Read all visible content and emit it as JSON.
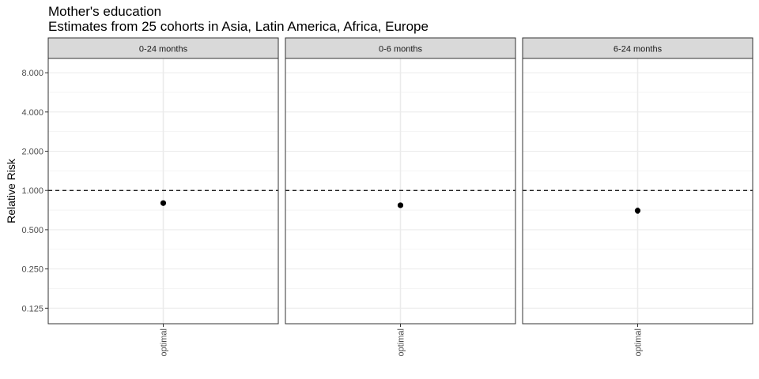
{
  "chart_data": {
    "type": "scatter",
    "title": "Mother's education",
    "subtitle": "Estimates from 25 cohorts in Asia, Latin America, Africa, Europe",
    "ylabel": "Relative Risk",
    "xlabel": "",
    "y_scale": "log2",
    "ylim": [
      0.095,
      10.3
    ],
    "y_ticks": [
      "0.125",
      "0.250",
      "0.500",
      "1.000",
      "2.000",
      "4.000",
      "8.000"
    ],
    "reference_line": 1.0,
    "grid": true,
    "panels": [
      {
        "label": "0-24 months",
        "categories": [
          "optimal"
        ],
        "points": [
          {
            "x": "optimal",
            "y": 0.8,
            "ci_low": 0.79,
            "ci_high": 0.81
          }
        ]
      },
      {
        "label": "0-6 months",
        "categories": [
          "optimal"
        ],
        "points": [
          {
            "x": "optimal",
            "y": 0.77,
            "ci_low": 0.76,
            "ci_high": 0.78
          }
        ]
      },
      {
        "label": "6-24 months",
        "categories": [
          "optimal"
        ],
        "points": [
          {
            "x": "optimal",
            "y": 0.7,
            "ci_low": 0.66,
            "ci_high": 0.74
          }
        ]
      }
    ]
  },
  "colors": {
    "panel_border": "#333333",
    "strip_fill": "#d9d9d9",
    "grid": "#ebebeb",
    "point": "#000000",
    "errorbar": "#7f7f7f",
    "reference_line": "#000000"
  }
}
